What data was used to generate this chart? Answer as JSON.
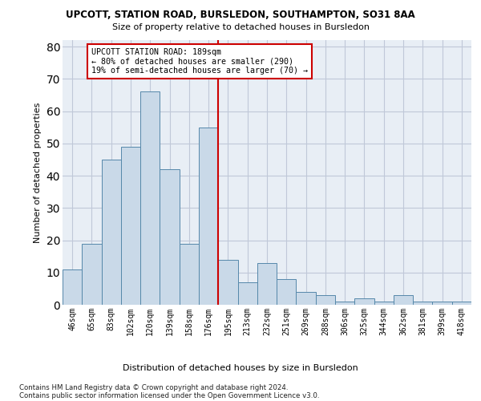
{
  "title": "UPCOTT, STATION ROAD, BURSLEDON, SOUTHAMPTON, SO31 8AA",
  "subtitle": "Size of property relative to detached houses in Bursledon",
  "xlabel": "Distribution of detached houses by size in Bursledon",
  "ylabel": "Number of detached properties",
  "categories": [
    "46sqm",
    "65sqm",
    "83sqm",
    "102sqm",
    "120sqm",
    "139sqm",
    "158sqm",
    "176sqm",
    "195sqm",
    "213sqm",
    "232sqm",
    "251sqm",
    "269sqm",
    "288sqm",
    "306sqm",
    "325sqm",
    "344sqm",
    "362sqm",
    "381sqm",
    "399sqm",
    "418sqm"
  ],
  "values": [
    11,
    19,
    45,
    49,
    66,
    42,
    19,
    55,
    14,
    7,
    13,
    8,
    4,
    3,
    1,
    2,
    1,
    3,
    1,
    1,
    1
  ],
  "bar_color": "#c9d9e8",
  "bar_edge_color": "#5588aa",
  "marker_line_color": "#cc0000",
  "annotation_line1": "UPCOTT STATION ROAD: 189sqm",
  "annotation_line2": "← 80% of detached houses are smaller (290)",
  "annotation_line3": "19% of semi-detached houses are larger (70) →",
  "annotation_box_color": "#cc0000",
  "ylim": [
    0,
    82
  ],
  "yticks": [
    0,
    10,
    20,
    30,
    40,
    50,
    60,
    70,
    80
  ],
  "grid_color": "#c0c8d8",
  "bg_color": "#e8eef5",
  "footnote1": "Contains HM Land Registry data © Crown copyright and database right 2024.",
  "footnote2": "Contains public sector information licensed under the Open Government Licence v3.0."
}
